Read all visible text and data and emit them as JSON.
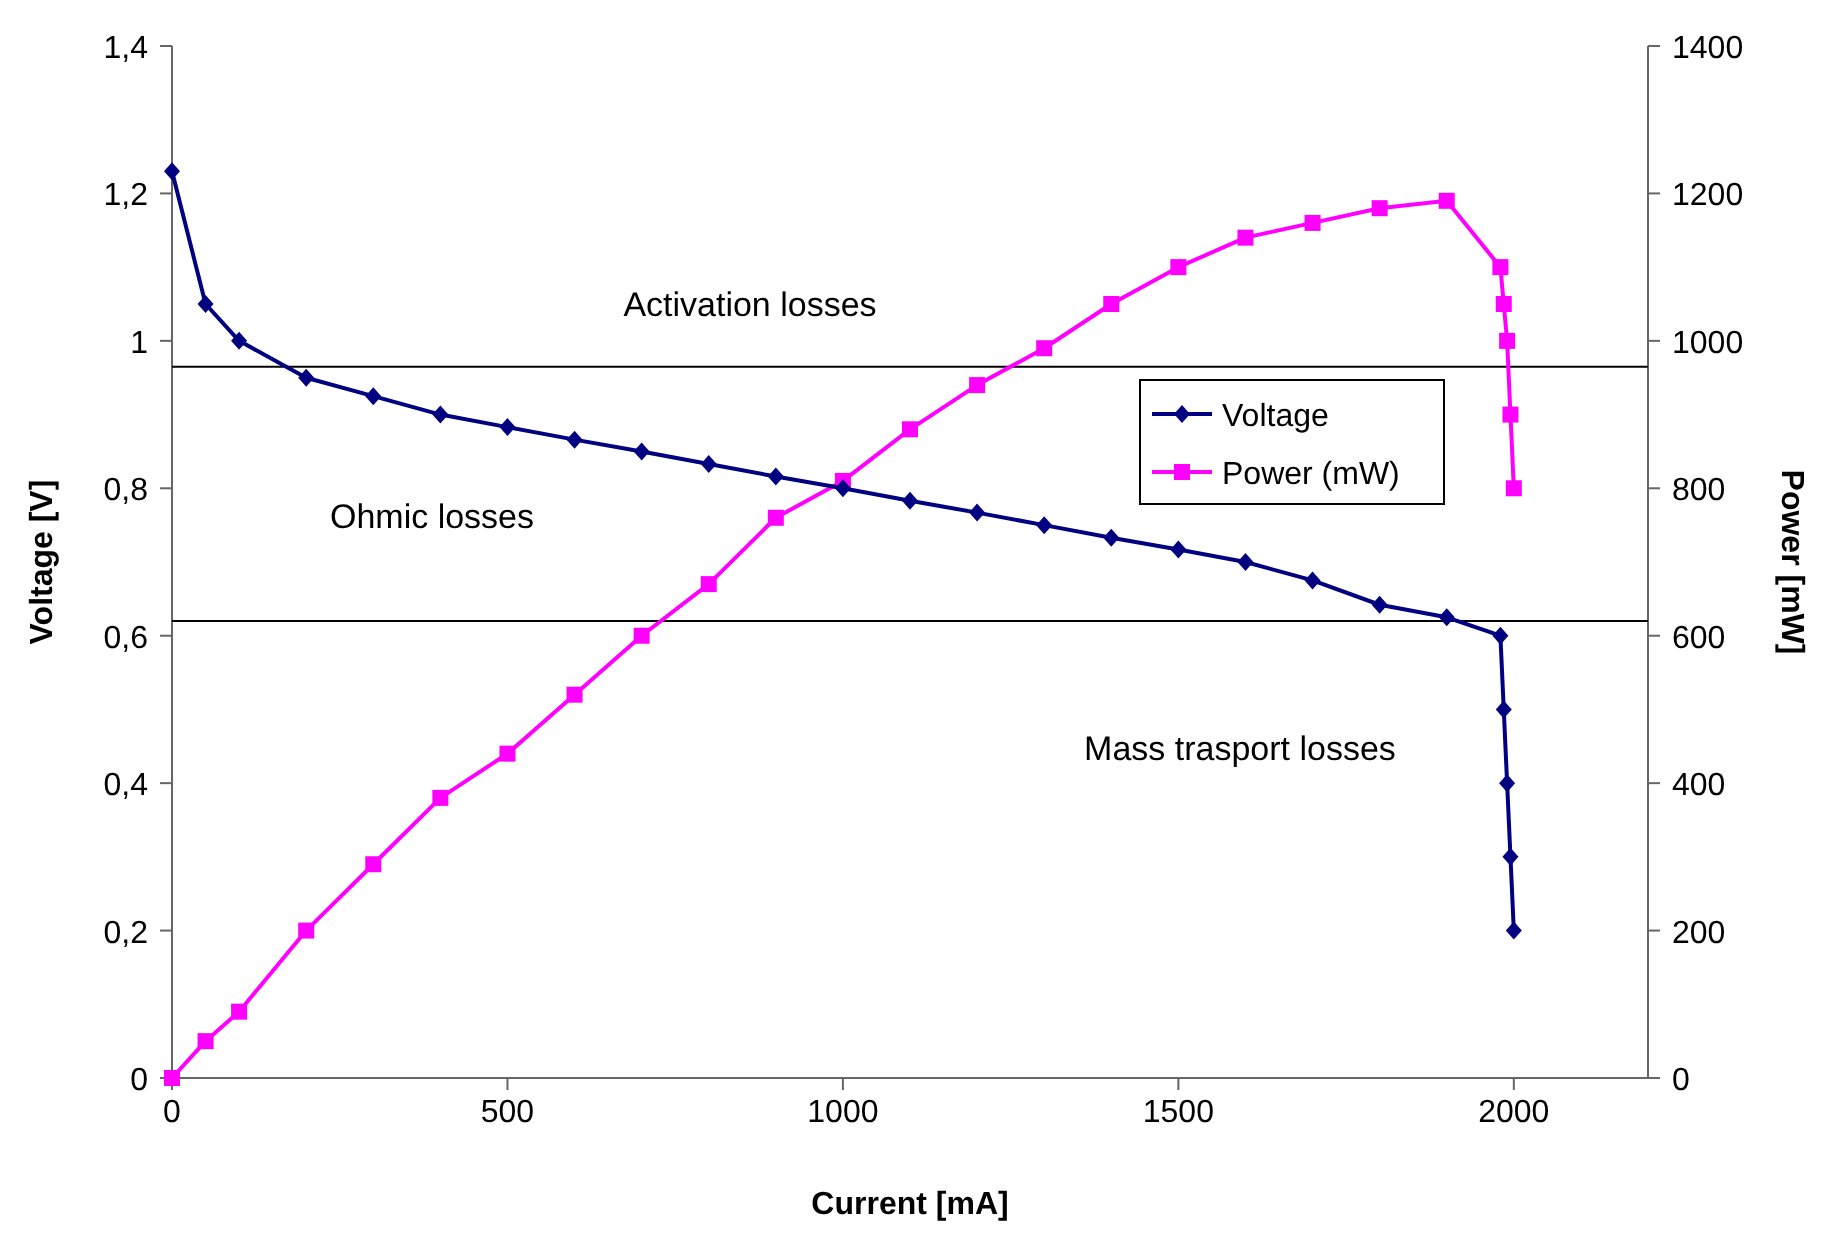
{
  "chart_data": {
    "type": "line",
    "xlabel": "Current [mA]",
    "ylabel": "Voltage [V]",
    "y2label": "Power [mW]",
    "xlim": [
      0,
      2200
    ],
    "xticks": [
      0,
      500,
      1000,
      1500,
      2000
    ],
    "ylim": [
      0,
      1.4
    ],
    "yticks": [
      0,
      {
        "value": 0.2,
        "label": "0,2"
      },
      {
        "value": 0.4,
        "label": "0,4"
      },
      {
        "value": 0.6,
        "label": "0,6"
      },
      {
        "value": 0.8,
        "label": "0,8"
      },
      1,
      {
        "value": 1.2,
        "label": "1,2"
      },
      {
        "value": 1.4,
        "label": "1,4"
      }
    ],
    "y2lim": [
      0,
      1400
    ],
    "y2ticks": [
      0,
      200,
      400,
      600,
      800,
      1000,
      1200,
      1400
    ],
    "legend": "right",
    "line_style": "solid",
    "grid": false,
    "series": [
      {
        "name": "Voltage",
        "color": "#000080",
        "marker": "diamond",
        "x": [
          0,
          50,
          100,
          200,
          300,
          400,
          500,
          600,
          700,
          800,
          900,
          1000,
          1100,
          1200,
          1300,
          1400,
          1500,
          1600,
          1700,
          1800,
          1900,
          1980,
          1985,
          1990,
          1995,
          2000
        ],
        "values": [
          1.23,
          1.05,
          1.0,
          0.95,
          0.925,
          0.9,
          0.883,
          0.866,
          0.85,
          0.833,
          0.816,
          0.8,
          0.783,
          0.767,
          0.75,
          0.733,
          0.717,
          0.7,
          0.675,
          0.642,
          0.625,
          0.6,
          0.5,
          0.4,
          0.3,
          0.2
        ]
      },
      {
        "name": "Power (mW)",
        "color": "#ff00ff",
        "marker": "square",
        "axis": "y2",
        "x": [
          0,
          50,
          100,
          200,
          300,
          400,
          500,
          600,
          700,
          800,
          900,
          1000,
          1100,
          1200,
          1300,
          1400,
          1500,
          1600,
          1700,
          1800,
          1900,
          1980,
          1985,
          1990,
          1995,
          2000
        ],
        "values": [
          0,
          50,
          90,
          200,
          290,
          380,
          440,
          520,
          600,
          670,
          760,
          810,
          880,
          940,
          990,
          1050,
          1100,
          1140,
          1160,
          1180,
          1190,
          1100,
          1050,
          1000,
          900,
          800
        ]
      }
    ],
    "ref_lines": [
      {
        "axis": "y",
        "value": 0.965,
        "color": "#000000"
      },
      {
        "axis": "y",
        "value": 0.62,
        "color": "#000000"
      }
    ],
    "annotations": [
      "Activation losses",
      "Ohmic losses",
      "Mass trasport losses"
    ]
  }
}
